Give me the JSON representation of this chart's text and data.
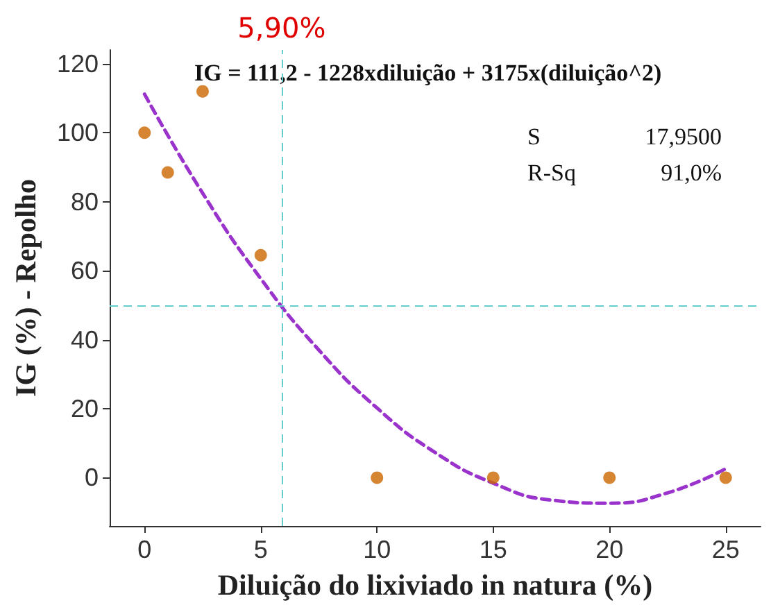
{
  "chart_data": {
    "type": "scatter",
    "xlabel": "Diluição do lixiviado in natura (%)",
    "ylabel": "IG (%) - Repolho",
    "x": [
      0,
      1,
      2.5,
      5,
      10,
      15,
      20,
      25
    ],
    "series": [
      {
        "color": "#cc6600",
        "marker": "circle",
        "values": [
          100,
          88.5,
          112,
          64.5,
          0,
          0,
          0,
          0
        ]
      },
      {
        "type": "line",
        "color": "#9933cc",
        "marker": "none",
        "line_style": "dashed",
        "x": [
          0,
          2.5,
          5,
          7.5,
          10,
          12.5,
          15,
          17.5,
          20,
          22.5,
          25
        ],
        "values": [
          111.2,
          82.5,
          57.7,
          37,
          20.2,
          7.3,
          -1.6,
          -6.5,
          -7.4,
          -4.4,
          2.6
        ]
      }
    ],
    "xlim": [
      -1.5,
      26.5
    ],
    "xticks": [
      0,
      5,
      10,
      15,
      20,
      25
    ],
    "ylim": [
      -14,
      124
    ],
    "yticks": [
      0,
      20,
      40,
      60,
      80,
      100,
      120
    ],
    "grid": false,
    "ref_lines": [
      {
        "axis": "x",
        "value": 5.9,
        "label": "5,90%",
        "color": "#66cccc",
        "line_style": "dashed"
      },
      {
        "axis": "y",
        "value": 50,
        "label": null,
        "color": "#66cccc",
        "line_style": "dashed"
      }
    ],
    "annotations": [
      "IG = 111,2 - 1228xdiluição + 3175x(diluição^2)",
      "S 17,9500",
      "R-Sq 91,0%"
    ]
  }
}
